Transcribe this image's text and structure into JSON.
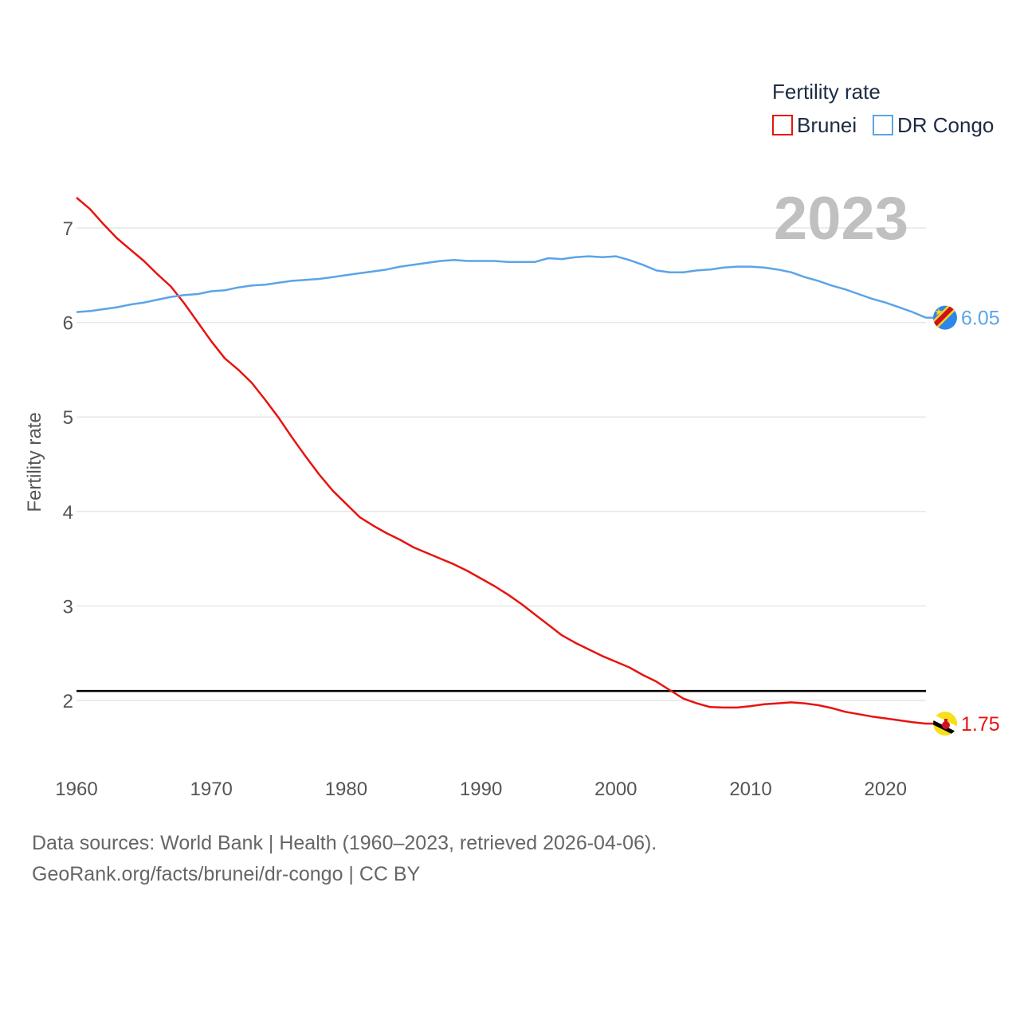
{
  "colors": {
    "brunei": "#e8130f",
    "drcongo": "#5ba4e8",
    "reference": "#000000",
    "grid": "#e6e6e6",
    "year": "#c0c0c0"
  },
  "chart_data": {
    "type": "line",
    "title": "Fertility rate",
    "xlabel": "",
    "ylabel": "Fertility rate",
    "current_year": "2023",
    "xlim": [
      1960,
      2023
    ],
    "ylim": [
      1.45,
      7.35
    ],
    "x_ticks": [
      1960,
      1970,
      1980,
      1990,
      2000,
      2010,
      2020
    ],
    "y_ticks": [
      2,
      3,
      4,
      5,
      6,
      7
    ],
    "reference_line": 2.1,
    "legend": [
      "Brunei",
      "DR Congo"
    ],
    "x": [
      1960,
      1961,
      1962,
      1963,
      1964,
      1965,
      1966,
      1967,
      1968,
      1969,
      1970,
      1971,
      1972,
      1973,
      1974,
      1975,
      1976,
      1977,
      1978,
      1979,
      1980,
      1981,
      1982,
      1983,
      1984,
      1985,
      1986,
      1987,
      1988,
      1989,
      1990,
      1991,
      1992,
      1993,
      1994,
      1995,
      1996,
      1997,
      1998,
      1999,
      2000,
      2001,
      2002,
      2003,
      2004,
      2005,
      2006,
      2007,
      2008,
      2009,
      2010,
      2011,
      2012,
      2013,
      2014,
      2015,
      2016,
      2017,
      2018,
      2019,
      2020,
      2021,
      2022,
      2023
    ],
    "series": [
      {
        "name": "Brunei",
        "end_label": "1.75",
        "values": [
          7.32,
          7.2,
          7.04,
          6.89,
          6.77,
          6.65,
          6.51,
          6.38,
          6.2,
          6.0,
          5.8,
          5.62,
          5.5,
          5.36,
          5.18,
          4.99,
          4.78,
          4.58,
          4.39,
          4.22,
          4.08,
          3.94,
          3.85,
          3.77,
          3.7,
          3.62,
          3.56,
          3.5,
          3.44,
          3.37,
          3.29,
          3.21,
          3.12,
          3.02,
          2.91,
          2.8,
          2.69,
          2.61,
          2.54,
          2.47,
          2.41,
          2.35,
          2.27,
          2.2,
          2.11,
          2.02,
          1.97,
          1.93,
          1.925,
          1.925,
          1.94,
          1.96,
          1.97,
          1.98,
          1.97,
          1.95,
          1.92,
          1.88,
          1.855,
          1.83,
          1.81,
          1.79,
          1.77,
          1.755
        ]
      },
      {
        "name": "DR Congo",
        "end_label": "6.05",
        "values": [
          6.11,
          6.12,
          6.14,
          6.16,
          6.19,
          6.21,
          6.24,
          6.27,
          6.29,
          6.3,
          6.33,
          6.34,
          6.37,
          6.39,
          6.4,
          6.42,
          6.44,
          6.45,
          6.46,
          6.48,
          6.5,
          6.52,
          6.54,
          6.56,
          6.59,
          6.61,
          6.63,
          6.65,
          6.66,
          6.65,
          6.65,
          6.65,
          6.64,
          6.64,
          6.64,
          6.68,
          6.67,
          6.69,
          6.7,
          6.69,
          6.7,
          6.66,
          6.61,
          6.55,
          6.53,
          6.53,
          6.55,
          6.56,
          6.58,
          6.59,
          6.59,
          6.58,
          6.56,
          6.53,
          6.48,
          6.44,
          6.39,
          6.35,
          6.3,
          6.25,
          6.21,
          6.16,
          6.11,
          6.05
        ]
      }
    ]
  },
  "footer": {
    "line1": "Data sources: World Bank | Health (1960–2023, retrieved 2026-04-06).",
    "line2": "GeoRank.org/facts/brunei/dr-congo | CC BY"
  }
}
